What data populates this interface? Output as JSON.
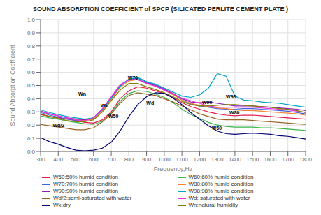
{
  "chart_data": {
    "type": "line",
    "title": "SOUND ABSORPTION COEFFICIENT of SPCP (SILICATED PERLITE CEMENT PLATE )",
    "xlabel": "Frequency,Hz",
    "ylabel": "Sound Absorption Coefficient",
    "xlim": [
      300,
      1800
    ],
    "ylim": [
      0,
      1.0
    ],
    "xticks": [
      300,
      400,
      500,
      600,
      700,
      800,
      900,
      1000,
      1100,
      1200,
      1300,
      1400,
      1500,
      1600,
      1700,
      1800
    ],
    "yticks": [
      {
        "value": 0,
        "label": "0.0"
      },
      0.1,
      0.2,
      0.3,
      0.4,
      0.5,
      0.6,
      0.7,
      0.8,
      0.9,
      {
        "value": 1,
        "label": "1.0"
      }
    ],
    "grid": true,
    "legend": "bottom",
    "x": [
      300,
      350,
      400,
      450,
      500,
      550,
      600,
      650,
      700,
      750,
      800,
      850,
      900,
      950,
      1000,
      1050,
      1100,
      1150,
      1200,
      1250,
      1300,
      1350,
      1400,
      1450,
      1500,
      1550,
      1600,
      1650,
      1700,
      1750,
      1800
    ],
    "series": [
      {
        "name": "W50:50% humid condition",
        "color": "#e6194b",
        "values": [
          0.28,
          0.265,
          0.255,
          0.245,
          0.235,
          0.22,
          0.215,
          0.24,
          0.3,
          0.4,
          0.46,
          0.49,
          0.48,
          0.46,
          0.44,
          0.41,
          0.37,
          0.34,
          0.32,
          0.3,
          0.285,
          0.275,
          0.27,
          0.275,
          0.275,
          0.27,
          0.265,
          0.26,
          0.255,
          0.25,
          0.245
        ]
      },
      {
        "name": "W60:60% humid condition",
        "color": "#3cb44b",
        "values": [
          0.27,
          0.255,
          0.245,
          0.23,
          0.22,
          0.21,
          0.205,
          0.23,
          0.29,
          0.38,
          0.44,
          0.46,
          0.455,
          0.435,
          0.41,
          0.37,
          0.32,
          0.28,
          0.25,
          0.22,
          0.2,
          0.19,
          0.185,
          0.185,
          0.185,
          0.18,
          0.18,
          0.175,
          0.17,
          0.165,
          0.16
        ]
      },
      {
        "name": "W70:70% humid condition",
        "color": "#4363d8",
        "values": [
          0.295,
          0.275,
          0.26,
          0.245,
          0.235,
          0.235,
          0.255,
          0.315,
          0.4,
          0.5,
          0.545,
          0.555,
          0.525,
          0.505,
          0.475,
          0.435,
          0.39,
          0.36,
          0.345,
          0.335,
          0.325,
          0.32,
          0.32,
          0.325,
          0.325,
          0.32,
          0.315,
          0.31,
          0.305,
          0.295,
          0.285
        ]
      },
      {
        "name": "W80:80% humid condition",
        "color": "#f58231",
        "values": [
          0.305,
          0.285,
          0.27,
          0.255,
          0.245,
          0.235,
          0.245,
          0.31,
          0.395,
          0.485,
          0.535,
          0.545,
          0.515,
          0.495,
          0.465,
          0.43,
          0.39,
          0.365,
          0.35,
          0.34,
          0.33,
          0.325,
          0.315,
          0.31,
          0.31,
          0.305,
          0.3,
          0.295,
          0.29,
          0.285,
          0.275
        ]
      },
      {
        "name": "W90:90% humid condition",
        "color": "#911eb4",
        "values": [
          0.305,
          0.285,
          0.27,
          0.255,
          0.245,
          0.24,
          0.255,
          0.32,
          0.405,
          0.495,
          0.545,
          0.545,
          0.52,
          0.5,
          0.47,
          0.44,
          0.4,
          0.375,
          0.37,
          0.375,
          0.365,
          0.355,
          0.345,
          0.345,
          0.345,
          0.34,
          0.335,
          0.33,
          0.325,
          0.32,
          0.31
        ]
      },
      {
        "name": "W98:98% humid condition",
        "color": "#00a3c4",
        "values": [
          0.315,
          0.295,
          0.28,
          0.265,
          0.255,
          0.245,
          0.255,
          0.32,
          0.405,
          0.495,
          0.55,
          0.56,
          0.53,
          0.51,
          0.48,
          0.45,
          0.42,
          0.41,
          0.43,
          0.48,
          0.59,
          0.57,
          0.42,
          0.39,
          0.385,
          0.375,
          0.37,
          0.365,
          0.355,
          0.345,
          0.335
        ]
      },
      {
        "name": "Wd: saturated with water",
        "color": "#f032e6",
        "values": [
          0.305,
          0.285,
          0.27,
          0.255,
          0.24,
          0.23,
          0.255,
          0.325,
          0.415,
          0.505,
          0.545,
          0.545,
          0.515,
          0.495,
          0.465,
          0.435,
          0.405,
          0.385,
          0.365,
          0.345,
          0.335,
          0.335,
          0.335,
          0.335,
          0.335,
          0.33,
          0.325,
          0.32,
          0.315,
          0.305,
          0.295
        ]
      },
      {
        "name": "Wd/2:semi-saturated with water",
        "color": "#9a6324",
        "values": [
          0.205,
          0.195,
          0.185,
          0.175,
          0.165,
          0.165,
          0.18,
          0.225,
          0.285,
          0.365,
          0.425,
          0.445,
          0.435,
          0.425,
          0.4,
          0.375,
          0.345,
          0.315,
          0.285,
          0.265,
          0.245,
          0.24,
          0.24,
          0.24,
          0.235,
          0.23,
          0.225,
          0.22,
          0.215,
          0.21,
          0.205
        ]
      },
      {
        "name": "Wn:natural humidity",
        "color": "#808000",
        "values": [
          0.285,
          0.265,
          0.25,
          0.235,
          0.225,
          0.225,
          0.24,
          0.3,
          0.385,
          0.465,
          0.515,
          0.515,
          0.49,
          0.47,
          0.445,
          0.415,
          0.38,
          0.355,
          0.345,
          0.345,
          0.35,
          0.355,
          0.355,
          0.35,
          0.345,
          0.34,
          0.335,
          0.325,
          0.32,
          0.31,
          0.295
        ]
      },
      {
        "name": "Wk:dry",
        "color": "#000075",
        "values": [
          0.105,
          0.075,
          0.055,
          0.03,
          0.01,
          0.005,
          0.01,
          0.025,
          0.07,
          0.155,
          0.265,
          0.355,
          0.415,
          0.445,
          0.44,
          0.405,
          0.355,
          0.295,
          0.245,
          0.195,
          0.155,
          0.135,
          0.13,
          0.135,
          0.14,
          0.135,
          0.13,
          0.12,
          0.115,
          0.105,
          0.095
        ]
      }
    ],
    "annotations": [
      {
        "text": "W70",
        "x": 790,
        "y": 0.56
      },
      {
        "text": "Wn",
        "x": 510,
        "y": 0.435
      },
      {
        "text": "Wk",
        "x": 635,
        "y": 0.345
      },
      {
        "text": "W50",
        "x": 680,
        "y": 0.265
      },
      {
        "text": "Wd",
        "x": 895,
        "y": 0.37
      },
      {
        "text": "W90",
        "x": 1210,
        "y": 0.375
      },
      {
        "text": "W98",
        "x": 1345,
        "y": 0.415
      },
      {
        "text": "W80",
        "x": 1365,
        "y": 0.295
      },
      {
        "text": "W60",
        "x": 1265,
        "y": 0.175
      },
      {
        "text": "Wd/2",
        "x": 365,
        "y": 0.2
      }
    ]
  }
}
